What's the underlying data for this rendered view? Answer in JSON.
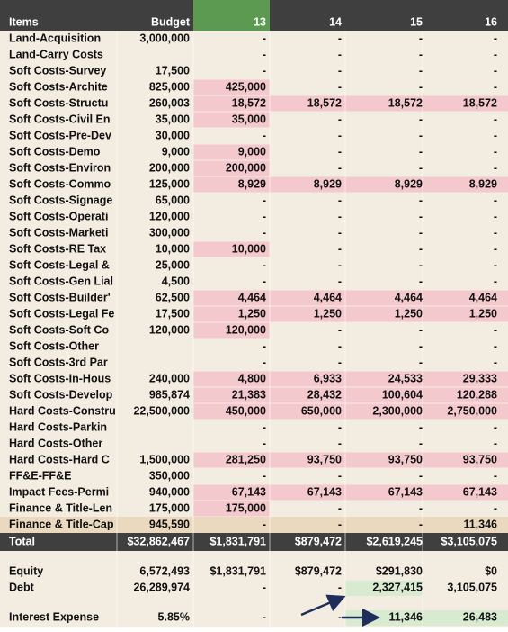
{
  "table": {
    "header": [
      "Items",
      "Budget",
      "13",
      "14",
      "15",
      "16"
    ],
    "highlight_color": "#f4c9ce",
    "total_row_color": "#ead8bf",
    "page_color": "#f3ece1",
    "header_color": "#3f3f3f",
    "header_accent": "#5b9a50",
    "summary_accent": "#d8ead0",
    "rows": [
      {
        "item": "Land-Acquisition",
        "budget": "3,000,000",
        "values": [
          "-",
          "-",
          "-",
          "-"
        ],
        "highlighted": 0
      },
      {
        "item": "Land-Carry Costs",
        "budget": null,
        "values": [
          "-",
          "-",
          "-",
          "-"
        ],
        "highlighted": 0
      },
      {
        "item": "Soft Costs-Survey",
        "budget": "17,500",
        "values": [
          "-",
          "-",
          "-",
          "-"
        ],
        "highlighted": 0
      },
      {
        "item": "Soft Costs-Archite",
        "budget": "825,000",
        "values": [
          "425,000",
          "-",
          "-",
          "-"
        ],
        "highlighted": 1
      },
      {
        "item": "Soft Costs-Structu",
        "budget": "260,003",
        "values": [
          "18,572",
          "18,572",
          "18,572",
          "18,572"
        ],
        "highlighted": 4
      },
      {
        "item": "Soft Costs-Civil En",
        "budget": "35,000",
        "values": [
          "35,000",
          "-",
          "-",
          "-"
        ],
        "highlighted": 1
      },
      {
        "item": "Soft Costs-Pre-Dev",
        "budget": "30,000",
        "values": [
          "-",
          "-",
          "-",
          "-"
        ],
        "highlighted": 0
      },
      {
        "item": "Soft Costs-Demo",
        "budget": "9,000",
        "values": [
          "9,000",
          "-",
          "-",
          "-"
        ],
        "highlighted": 1
      },
      {
        "item": "Soft Costs-Environ",
        "budget": "200,000",
        "values": [
          "200,000",
          "-",
          "-",
          "-"
        ],
        "highlighted": 1
      },
      {
        "item": "Soft Costs-Commo",
        "budget": "125,000",
        "values": [
          "8,929",
          "8,929",
          "8,929",
          "8,929"
        ],
        "highlighted": 4
      },
      {
        "item": "Soft Costs-Signage",
        "budget": "65,000",
        "values": [
          "-",
          "-",
          "-",
          "-"
        ],
        "highlighted": 0
      },
      {
        "item": "Soft Costs-Operati",
        "budget": "120,000",
        "values": [
          "-",
          "-",
          "-",
          "-"
        ],
        "highlighted": 0
      },
      {
        "item": "Soft Costs-Marketi",
        "budget": "300,000",
        "values": [
          "-",
          "-",
          "-",
          "-"
        ],
        "highlighted": 0
      },
      {
        "item": "Soft Costs-RE Tax",
        "budget": "10,000",
        "values": [
          "10,000",
          "-",
          "-",
          "-"
        ],
        "highlighted": 1
      },
      {
        "item": "Soft Costs-Legal &",
        "budget": "25,000",
        "values": [
          "-",
          "-",
          "-",
          "-"
        ],
        "highlighted": 0
      },
      {
        "item": "Soft Costs-Gen Lial",
        "budget": "4,500",
        "values": [
          "-",
          "-",
          "-",
          "-"
        ],
        "highlighted": 0
      },
      {
        "item": "Soft Costs-Builder'",
        "budget": "62,500",
        "values": [
          "4,464",
          "4,464",
          "4,464",
          "4,464"
        ],
        "highlighted": 4
      },
      {
        "item": "Soft Costs-Legal Fe",
        "budget": "17,500",
        "values": [
          "1,250",
          "1,250",
          "1,250",
          "1,250"
        ],
        "highlighted": 4
      },
      {
        "item": "Soft Costs-Soft Co",
        "budget": "120,000",
        "values": [
          "120,000",
          "-",
          "-",
          "-"
        ],
        "highlighted": 1
      },
      {
        "item": "Soft Costs-Other",
        "budget": null,
        "values": [
          "-",
          "-",
          "-",
          "-"
        ],
        "highlighted": 0
      },
      {
        "item": "Soft Costs-3rd Par",
        "budget": null,
        "values": [
          "-",
          "-",
          "-",
          "-"
        ],
        "highlighted": 0
      },
      {
        "item": "Soft Costs-In-Hous",
        "budget": "240,000",
        "values": [
          "4,800",
          "6,933",
          "24,533",
          "29,333"
        ],
        "highlighted": 4
      },
      {
        "item": "Soft Costs-Develop",
        "budget": "985,874",
        "values": [
          "21,383",
          "28,432",
          "100,604",
          "120,288"
        ],
        "highlighted": 4
      },
      {
        "item": "Hard Costs-Constru",
        "budget": "22,500,000",
        "values": [
          "450,000",
          "650,000",
          "2,300,000",
          "2,750,000"
        ],
        "highlighted": 4
      },
      {
        "item": "Hard Costs-Parkin",
        "budget": null,
        "values": [
          "-",
          "-",
          "-",
          "-"
        ],
        "highlighted": 0
      },
      {
        "item": "Hard Costs-Other",
        "budget": null,
        "values": [
          "-",
          "-",
          "-",
          "-"
        ],
        "highlighted": 0
      },
      {
        "item": "Hard Costs-Hard C",
        "budget": "1,500,000",
        "values": [
          "281,250",
          "93,750",
          "93,750",
          "93,750"
        ],
        "highlighted": 4
      },
      {
        "item": "FF&E-FF&E",
        "budget": "350,000",
        "values": [
          "-",
          "-",
          "-",
          "-"
        ],
        "highlighted": 0
      },
      {
        "item": "Impact Fees-Permi",
        "budget": "940,000",
        "values": [
          "67,143",
          "67,143",
          "67,143",
          "67,143"
        ],
        "highlighted": 4
      },
      {
        "item": "Finance & Title-Len",
        "budget": "175,000",
        "values": [
          "175,000",
          "-",
          "-",
          "-"
        ],
        "highlighted": 1
      },
      {
        "item": "Finance & Title-Cap",
        "budget": "945,590",
        "values": [
          "-",
          "-",
          "-",
          "11,346"
        ],
        "highlighted": 0,
        "total_tint": true
      }
    ],
    "total": {
      "item": "Total",
      "budget": "$32,862,467",
      "values": [
        "$1,831,791",
        "$879,472",
        "$2,619,245",
        "$3,105,075"
      ]
    },
    "summary": [
      {
        "item": "Equity",
        "budget": "6,572,493",
        "values": [
          "$1,831,791",
          "$879,472",
          "$291,830",
          "$0"
        ]
      },
      {
        "item": "Debt",
        "budget": "26,289,974",
        "values": [
          "-",
          "-",
          "2,327,415",
          "3,105,075"
        ]
      },
      {
        "item": "Interest Expense",
        "budget": "5.85%",
        "values": [
          "-",
          "-",
          "11,346",
          "26,483"
        ]
      }
    ]
  }
}
